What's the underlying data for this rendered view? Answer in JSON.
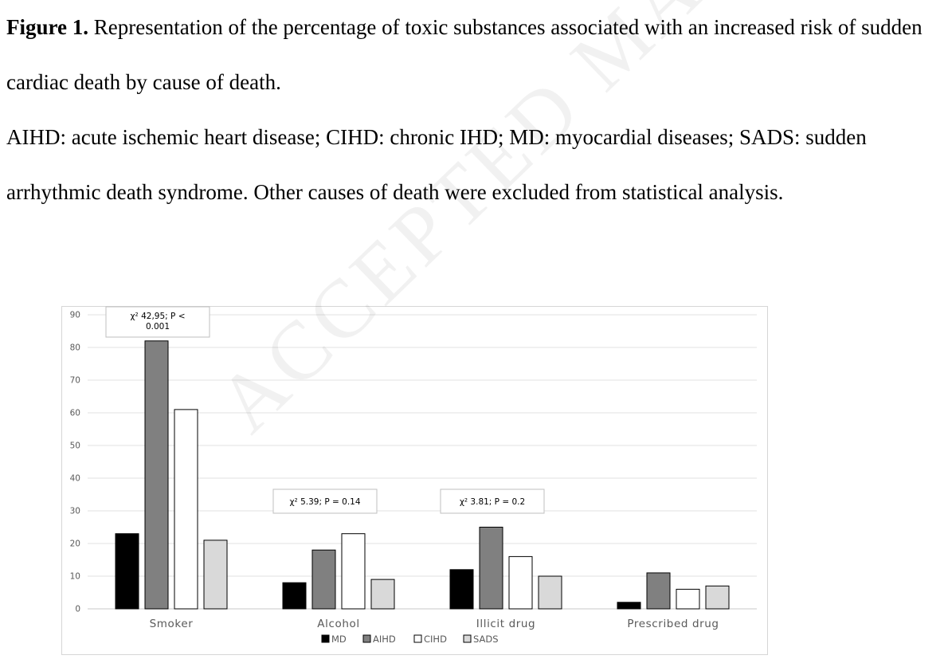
{
  "caption": {
    "figure_label": "Figure 1.",
    "title": "Representation of the percentage of toxic substances associated with an increased risk of sudden cardiac death by cause of death.",
    "abbreviations": "AIHD: acute ischemic heart disease; CIHD: chronic IHD; MD: myocardial diseases; SADS: sudden arrhythmic death syndrome. Other causes of death were excluded from statistical analysis."
  },
  "watermark": "ACCEPTED MANUSCRIPT",
  "chart_data": {
    "type": "bar",
    "categories": [
      "Smoker",
      "Alcohol",
      "Illicit drug",
      "Prescribed drug"
    ],
    "series": [
      {
        "name": "MD",
        "color": "#000000",
        "values": [
          23,
          8,
          12,
          2
        ]
      },
      {
        "name": "AIHD",
        "color": "#808080",
        "values": [
          82,
          18,
          25,
          11
        ]
      },
      {
        "name": "CIHD",
        "color": "#ffffff",
        "values": [
          61,
          23,
          16,
          6
        ]
      },
      {
        "name": "SADS",
        "color": "#d9d9d9",
        "values": [
          21,
          9,
          10,
          7
        ]
      }
    ],
    "ylim": [
      0,
      90
    ],
    "yticks": [
      0,
      10,
      20,
      30,
      40,
      50,
      60,
      70,
      80,
      90
    ],
    "grid": true,
    "legend_position": "bottom",
    "annotations": [
      {
        "category": "Smoker",
        "lines": [
          "χ² 42,95; P <",
          "0.001"
        ]
      },
      {
        "category": "Alcohol",
        "lines": [
          "χ² 5.39; P = 0.14"
        ]
      },
      {
        "category": "Illicit drug",
        "lines": [
          "χ² 3.81; P = 0.2"
        ]
      }
    ]
  }
}
